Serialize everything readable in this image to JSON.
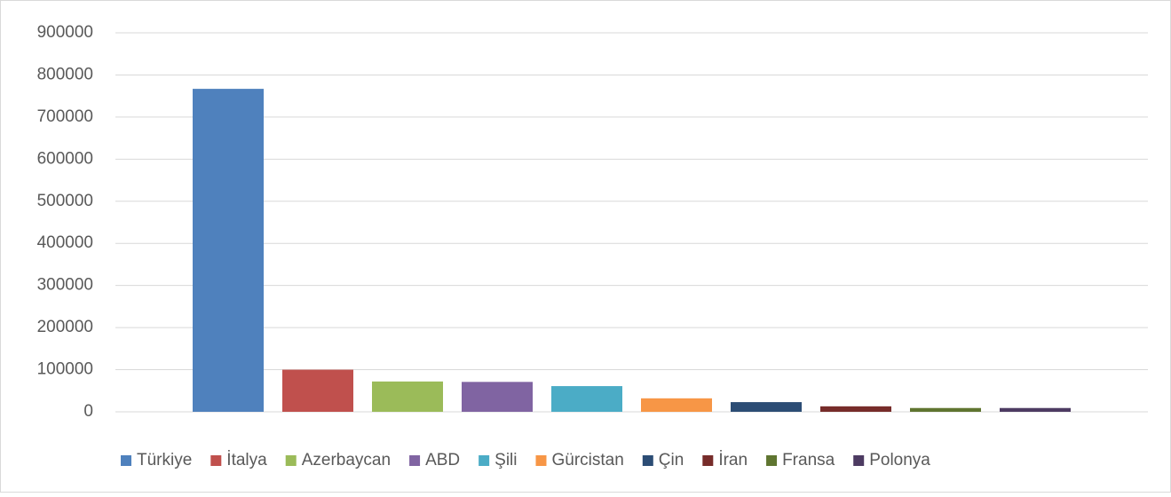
{
  "chart_data": {
    "type": "bar",
    "categories": [
      "Türkiye",
      "İtalya",
      "Azerbaycan",
      "ABD",
      "Şili",
      "Gürcistan",
      "Çin",
      "İran",
      "Fransa",
      "Polonya"
    ],
    "values": [
      767000,
      100000,
      72000,
      71000,
      61000,
      32000,
      23000,
      13000,
      9000,
      9000
    ],
    "colors": [
      "#4f81bd",
      "#c0504d",
      "#9bbb59",
      "#8064a2",
      "#4bacc6",
      "#f79646",
      "#2c4d75",
      "#772c2a",
      "#5f7530",
      "#4d3b62"
    ],
    "ylim": [
      0,
      900000
    ],
    "yticks": [
      0,
      100000,
      200000,
      300000,
      400000,
      500000,
      600000,
      700000,
      800000,
      900000
    ],
    "grid": true,
    "legend": "bottom"
  }
}
